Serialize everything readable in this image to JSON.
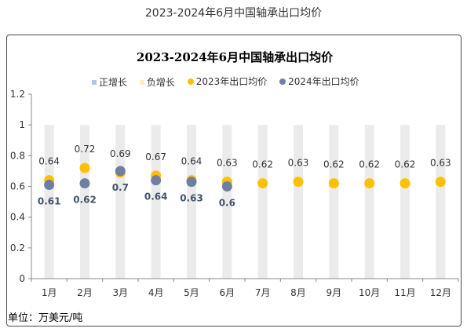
{
  "page_title": "2023-2024年6月中国轴承出口均价",
  "unit_label": "单位：万美元/吨",
  "legend": [
    {
      "label": "正增长",
      "marker": "square",
      "color": "#b4c6e7"
    },
    {
      "label": "负增长",
      "marker": "square",
      "color": "#fdeec0"
    },
    {
      "label": "2023年出口均价",
      "marker": "circle",
      "color": "#ffc000"
    },
    {
      "label": "2024年出口均价",
      "marker": "circle",
      "color": "#6e7fa3"
    }
  ],
  "chart_data": {
    "type": "scatter",
    "title": "2023-2024年6月中国轴承出口均价",
    "categories": [
      "1月",
      "2月",
      "3月",
      "4月",
      "5月",
      "6月",
      "7月",
      "8月",
      "9月",
      "10月",
      "11月",
      "12月"
    ],
    "ylim": [
      0,
      1.2
    ],
    "yticks": [
      "0",
      "0.2",
      "0.4",
      "0.6",
      "0.8",
      "1",
      "1.2"
    ],
    "grid": false,
    "legend_position": "top",
    "band_color": "#ebebeb",
    "series": [
      {
        "name": "2023年出口均价",
        "color": "#ffc000",
        "label_position": "above",
        "values": [
          0.64,
          0.72,
          0.69,
          0.67,
          0.64,
          0.63,
          0.62,
          0.63,
          0.62,
          0.62,
          0.62,
          0.63
        ],
        "labels": [
          "0.64",
          "0.72",
          "0.69",
          "0.67",
          "0.64",
          "0.63",
          "0.62",
          "0.63",
          "0.62",
          "0.62",
          "0.62",
          "0.63"
        ]
      },
      {
        "name": "2024年出口均价",
        "color": "#6e7fa3",
        "label_position": "below",
        "values": [
          0.61,
          0.62,
          0.7,
          0.64,
          0.63,
          0.6
        ],
        "labels": [
          "0.61",
          "0.62",
          "0.7",
          "0.64",
          "0.63",
          "0.6"
        ]
      }
    ]
  }
}
